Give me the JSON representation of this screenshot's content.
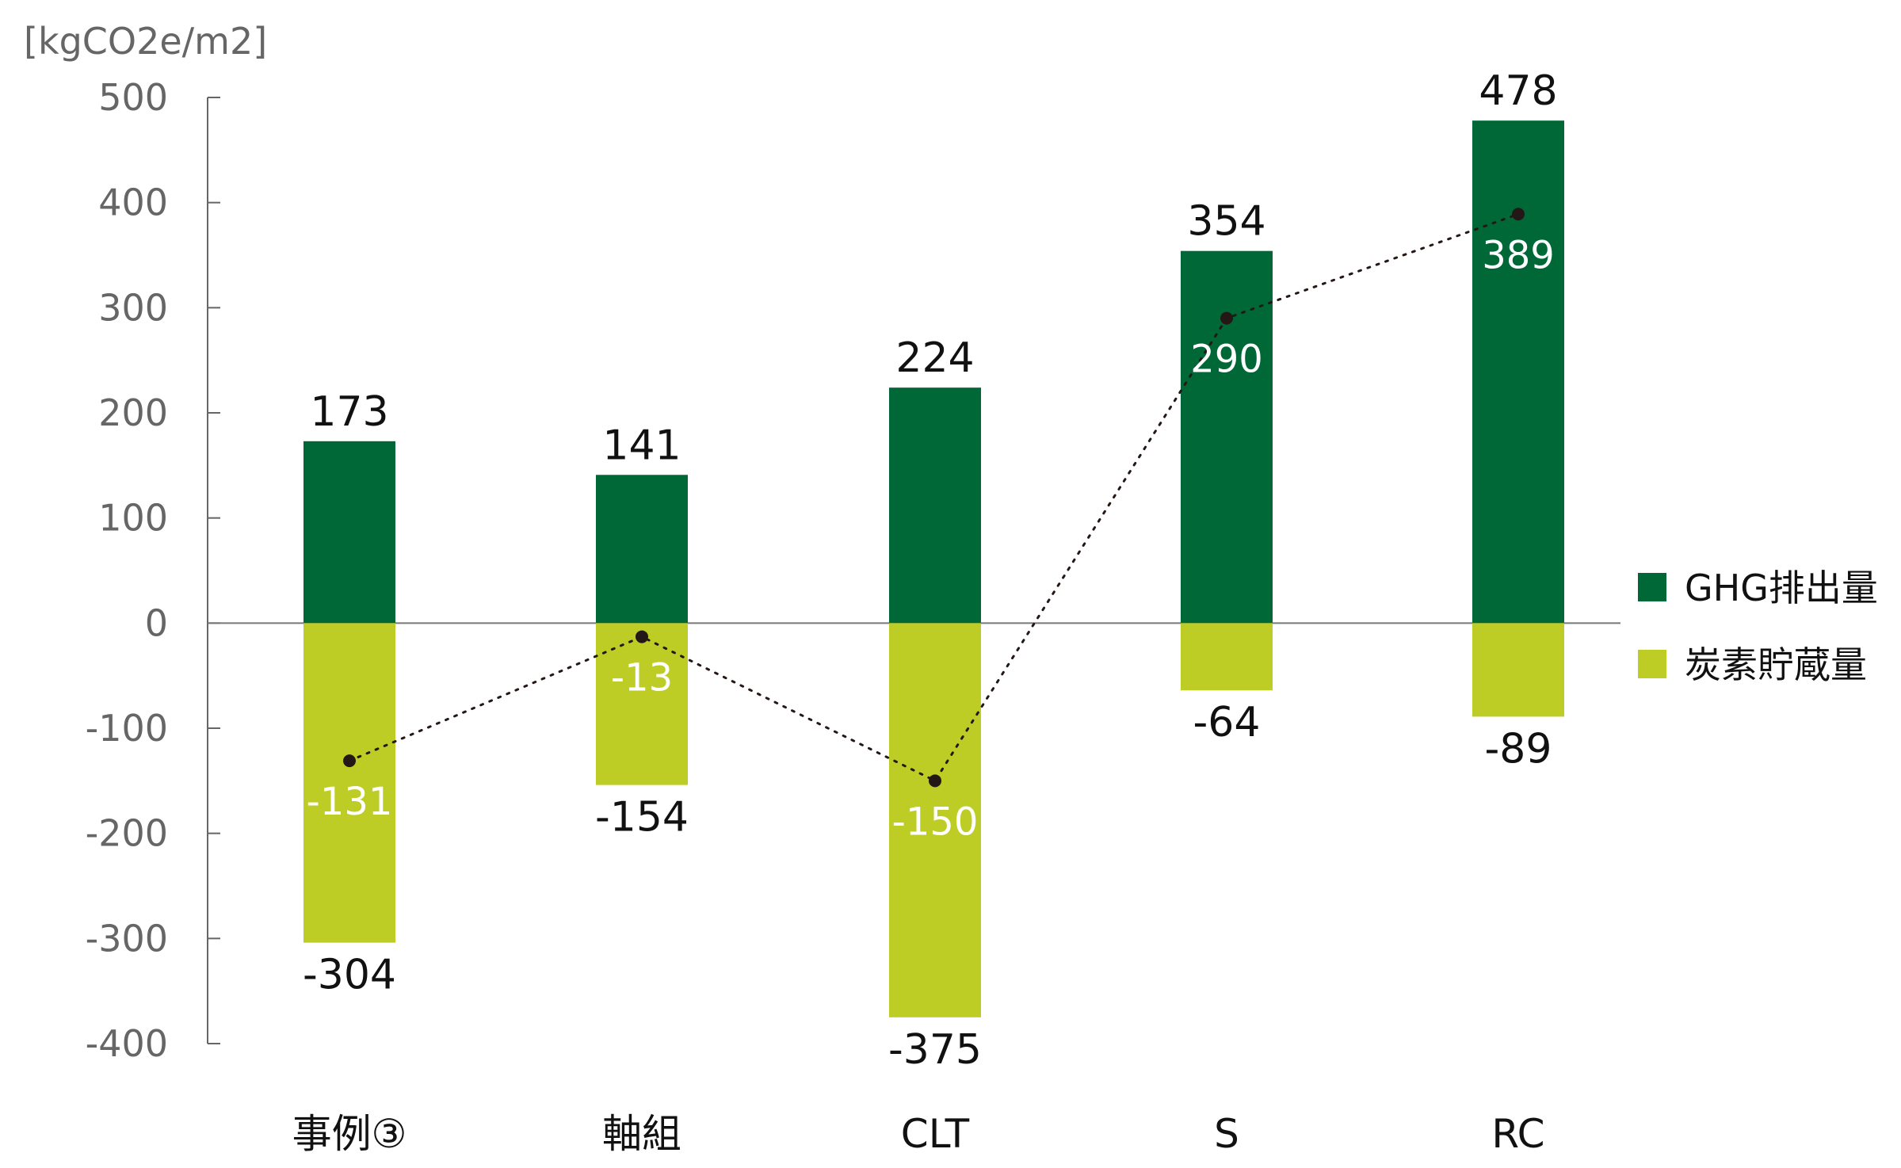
{
  "chart_data": {
    "type": "bar",
    "ylabel": "[kgCO2e/m2]",
    "ylim": [
      -400,
      500
    ],
    "yticks": [
      500,
      400,
      300,
      200,
      100,
      0,
      -100,
      -200,
      -300,
      -400
    ],
    "categories": [
      "事例③",
      "軸組",
      "CLT",
      "S",
      "RC"
    ],
    "series": [
      {
        "name": "GHG排出量",
        "values": [
          173,
          141,
          224,
          354,
          478
        ],
        "color": "#006837"
      },
      {
        "name": "炭素貯蔵量",
        "values": [
          -304,
          -154,
          -375,
          -64,
          -89
        ],
        "color": "#bdcd26"
      }
    ],
    "net_values": [
      -131,
      -13,
      -150,
      290,
      389
    ],
    "net_label_color": "#ffffff",
    "net_marker_color": "#231815",
    "legend_position": "right",
    "grid": false
  }
}
